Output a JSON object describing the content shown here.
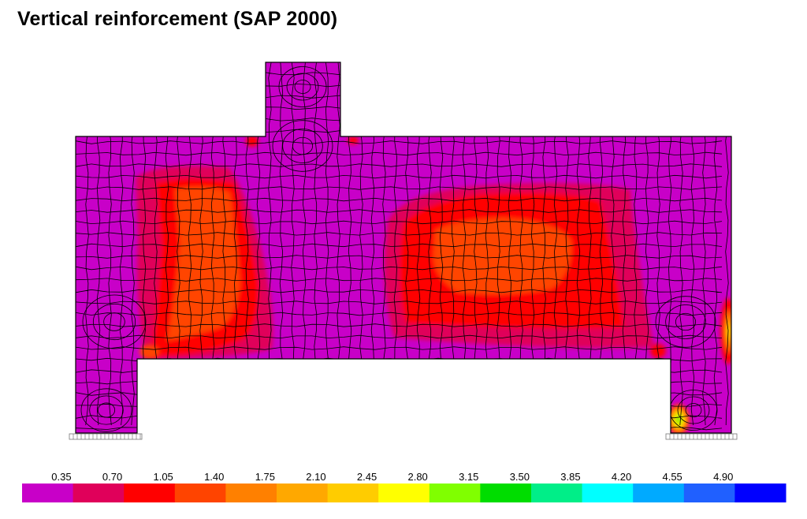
{
  "title": "Vertical reinforcement (SAP 2000)",
  "legend": {
    "ticks": [
      "0.35",
      "0.70",
      "1.05",
      "1.40",
      "1.75",
      "2.10",
      "2.45",
      "2.80",
      "3.15",
      "3.50",
      "3.85",
      "4.20",
      "4.55",
      "4.90"
    ],
    "colors": [
      "#c800c8",
      "#e0005a",
      "#ff0000",
      "#ff4400",
      "#ff8000",
      "#ffa800",
      "#ffcc00",
      "#ffff00",
      "#80ff00",
      "#00dd00",
      "#00ee88",
      "#00ffff",
      "#00aaff",
      "#2060ff",
      "#0000ff"
    ]
  },
  "structure": {
    "background_color": "#c800c8",
    "mesh_color": "#000000"
  }
}
